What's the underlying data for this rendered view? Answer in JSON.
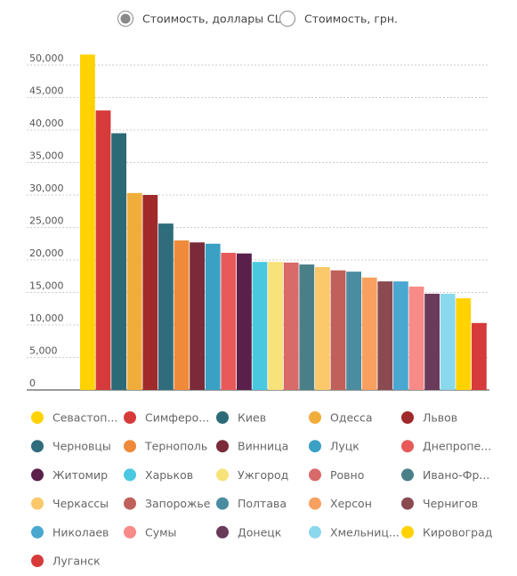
{
  "toggle_options": [
    "Стоимость, доллары США",
    "Стоимость, грн."
  ],
  "toggle_selected": 0,
  "chart_data": {
    "type": "bar",
    "categories": [
      "Севастоп...",
      "Симферо...",
      "Киев",
      "Одесса",
      "Львов",
      "Черновцы",
      "Тернополь",
      "Винница",
      "Луцк",
      "Днепропе...",
      "Житомир",
      "Харьков",
      "Ужгород",
      "Ровно",
      "Ивано-Фр...",
      "Черкассы",
      "Запорожье",
      "Полтава",
      "Херсон",
      "Чернигов",
      "Николаев",
      "Сумы",
      "Донецк",
      "Хмельниц...",
      "Кировоград",
      "Луганск"
    ],
    "values": [
      51600,
      43000,
      39500,
      30300,
      30000,
      25600,
      23000,
      22700,
      22500,
      21100,
      21000,
      19700,
      19700,
      19600,
      19300,
      18900,
      18400,
      18200,
      17300,
      16700,
      16700,
      15900,
      14800,
      14800,
      14100,
      10300
    ],
    "colors": [
      "#ffd200",
      "#d63a3a",
      "#2c6a78",
      "#f0ad3c",
      "#a02a2a",
      "#2f6d7d",
      "#ef8a3a",
      "#7a2a38",
      "#3aa0c4",
      "#e85a5a",
      "#5a1f4a",
      "#4ac8e0",
      "#f8e27a",
      "#d96a6a",
      "#4a7f88",
      "#fbc86a",
      "#c0605a",
      "#4a8ca0",
      "#f8a060",
      "#8a4a50",
      "#4aa8d0",
      "#f88a88",
      "#6a3a5a",
      "#8ad8ec",
      "#ffd200",
      "#d63a3a"
    ],
    "ylim": [
      0,
      52000
    ],
    "yticks": [
      0,
      {
        "value": 5000,
        "label": "5,000"
      },
      {
        "value": 10000,
        "label": "10,000"
      },
      {
        "value": 15000,
        "label": "15,000"
      },
      {
        "value": 20000,
        "label": "20,000"
      },
      {
        "value": 25000,
        "label": "25,000"
      },
      {
        "value": 30000,
        "label": "30,000"
      },
      {
        "value": 35000,
        "label": "35,000"
      },
      {
        "value": 40000,
        "label": "40,000"
      },
      {
        "value": 45000,
        "label": "45,000"
      },
      {
        "value": 50000,
        "label": "50,000"
      }
    ],
    "grid": true
  }
}
